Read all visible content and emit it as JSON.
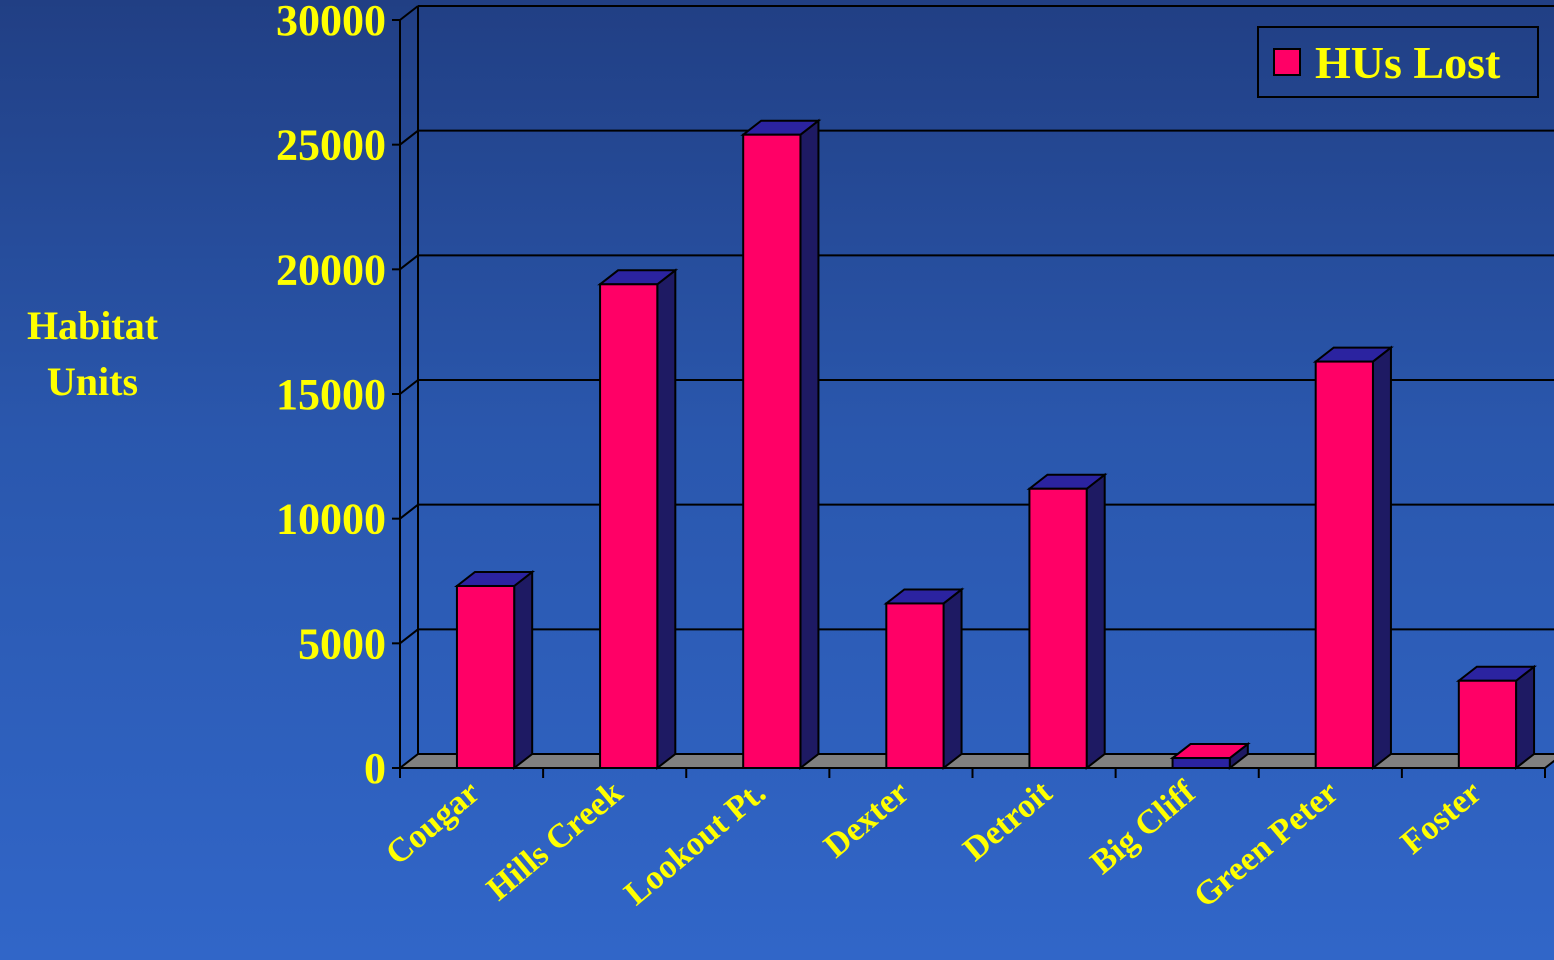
{
  "chart_data": {
    "type": "bar",
    "title": "",
    "xlabel": "",
    "ylabel": "Habitat\nUnits",
    "categories": [
      "Cougar",
      "Hills Creek",
      "Lookout Pt.",
      "Dexter",
      "Detroit",
      "Big Cliff",
      "Green Peter",
      "Foster"
    ],
    "series": [
      {
        "name": "HUs Lost",
        "values": [
          7300,
          19400,
          25400,
          6600,
          11200,
          400,
          16300,
          3500
        ]
      }
    ],
    "ylim": [
      0,
      30000
    ],
    "yticks": [
      "0",
      "5000",
      "10000",
      "15000",
      "20000",
      "25000",
      "30000"
    ],
    "grid": true,
    "legend_position": "top-right",
    "three_d": true,
    "colors": {
      "bar_front": "#ff0066",
      "bar_side": "#1e1a63",
      "bar_top": "#2b23a0",
      "floor": "#808080",
      "text": "#ffff00",
      "gridline": "#000000"
    }
  }
}
